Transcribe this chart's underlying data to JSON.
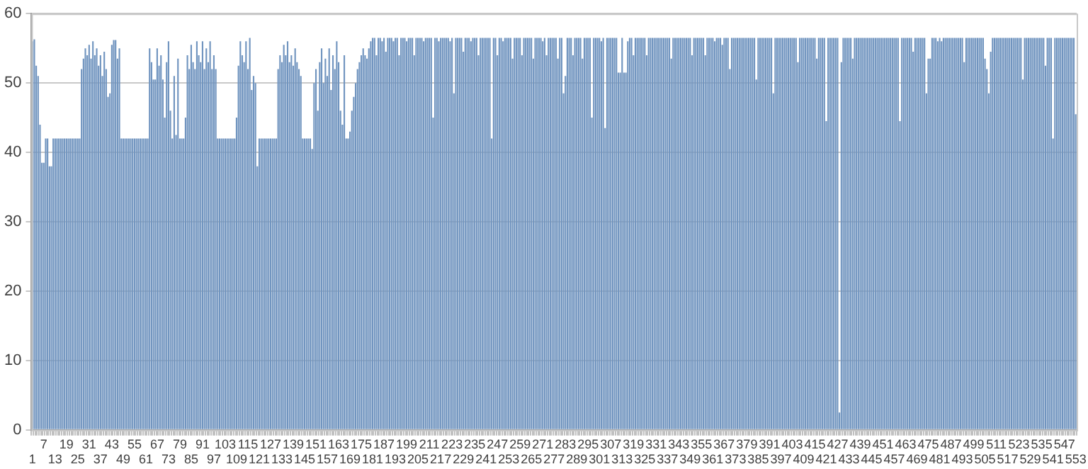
{
  "chart_data": {
    "type": "bar",
    "color": "#7094bf",
    "ylim": [
      0,
      60
    ],
    "yticks": [
      0,
      10,
      20,
      30,
      40,
      50,
      60
    ],
    "grid": "y",
    "categories": [
      "1",
      null,
      null,
      null,
      null,
      null,
      "7",
      null,
      null,
      null,
      null,
      null,
      "13",
      null,
      null,
      null,
      null,
      null,
      "19",
      null,
      null,
      null,
      null,
      null,
      "25",
      null,
      null,
      null,
      null,
      null,
      "31",
      null,
      null,
      null,
      null,
      null,
      "37",
      null,
      null,
      null,
      null,
      null,
      "43",
      null,
      null,
      null,
      null,
      null,
      "49",
      null,
      null,
      null,
      null,
      null,
      "55",
      null,
      null,
      null,
      null,
      null,
      "61",
      null,
      null,
      null,
      null,
      null,
      "67",
      null,
      null,
      null,
      null,
      null,
      "73",
      null,
      null,
      null,
      null,
      null,
      "79",
      null,
      null,
      null,
      null,
      null,
      "85",
      null,
      null,
      null,
      null,
      null,
      "91",
      null,
      null,
      null,
      null,
      null,
      "97",
      null,
      null,
      null,
      null,
      null,
      "103",
      null,
      null,
      null,
      null,
      null,
      "109",
      null,
      null,
      null,
      null,
      null,
      "115",
      null,
      null,
      null,
      null,
      null,
      "121",
      null,
      null,
      null,
      null,
      null,
      "127",
      null,
      null,
      null,
      null,
      null,
      "133",
      null,
      null,
      null,
      null,
      null,
      "139",
      null,
      null,
      null,
      null,
      null,
      "145",
      null,
      null,
      null,
      null,
      null,
      "151",
      null,
      null,
      null,
      null,
      null,
      "157",
      null,
      null,
      null,
      null,
      null,
      "163",
      null,
      null,
      null,
      null,
      null,
      "169",
      null,
      null,
      null,
      null,
      null,
      "175",
      null,
      null,
      null,
      null,
      null,
      "181",
      null,
      null,
      null,
      null,
      null,
      "187",
      null,
      null,
      null,
      null,
      null,
      "193",
      null,
      null,
      null,
      null,
      null,
      "199",
      null,
      null,
      null,
      null,
      null,
      "205",
      null,
      null,
      null,
      null,
      null,
      "211",
      null,
      null,
      null,
      null,
      null,
      "217",
      null,
      null,
      null,
      null,
      null,
      "223",
      null,
      null,
      null,
      null,
      null,
      "229",
      null,
      null,
      null,
      null,
      null,
      "235",
      null,
      null,
      null,
      null,
      null,
      "241",
      null,
      null,
      null,
      null,
      null,
      "247",
      null,
      null,
      null,
      null,
      null,
      "253",
      null,
      null,
      null,
      null,
      null,
      "259",
      null,
      null,
      null,
      null,
      null,
      "265",
      null,
      null,
      null,
      null,
      null,
      "271",
      null,
      null,
      null,
      null,
      null,
      "277",
      null,
      null,
      null,
      null,
      null,
      "283",
      null,
      null,
      null,
      null,
      null,
      "289",
      null,
      null,
      null,
      null,
      null,
      "295",
      null,
      null,
      null,
      null,
      null,
      "301",
      null,
      null,
      null,
      null,
      null,
      "307",
      null,
      null,
      null,
      null,
      null,
      "313",
      null,
      null,
      null,
      null,
      null,
      "319",
      null,
      null,
      null,
      null,
      null,
      "325",
      null,
      null,
      null,
      null,
      null,
      "331",
      null,
      null,
      null,
      null,
      null,
      "337",
      null,
      null,
      null,
      null,
      null,
      "343",
      null,
      null,
      null,
      null,
      null,
      "349",
      null,
      null,
      null,
      null,
      null,
      "355",
      null,
      null,
      null,
      null,
      null,
      "361",
      null,
      null,
      null,
      null,
      null,
      "367",
      null,
      null,
      null,
      null,
      null,
      "373",
      null,
      null,
      null,
      null,
      null,
      "379",
      null,
      null,
      null,
      null,
      null,
      "385",
      null,
      null,
      null,
      null,
      null,
      "391",
      null,
      null,
      null,
      null,
      null,
      "397",
      null,
      null,
      null,
      null,
      null,
      "403",
      null,
      null,
      null,
      null,
      null,
      "409",
      null,
      null,
      null,
      null,
      null,
      "415",
      null,
      null,
      null,
      null,
      null,
      "421",
      null,
      null,
      null,
      null,
      null,
      "427",
      null,
      null,
      null,
      null,
      null,
      "433",
      null,
      null,
      null,
      null,
      null,
      "439",
      null,
      null,
      null,
      null,
      null,
      "445",
      null,
      null,
      null,
      null,
      null,
      "451",
      null,
      null,
      null,
      null,
      null,
      "457",
      null,
      null,
      null,
      null,
      null,
      "463",
      null,
      null,
      null,
      null,
      null,
      "469",
      null,
      null,
      null,
      null,
      null,
      "475",
      null,
      null,
      null,
      null,
      null,
      "481",
      null,
      null,
      null,
      null,
      null,
      "487",
      null,
      null,
      null,
      null,
      null,
      "493",
      null,
      null,
      null,
      null,
      null,
      "499",
      null,
      null,
      null,
      null,
      null,
      "505",
      null,
      null,
      null,
      null,
      null,
      "511",
      null,
      null,
      null,
      null,
      null,
      "517",
      null,
      null,
      null,
      null,
      null,
      "523",
      null,
      null,
      null,
      null,
      null,
      "529",
      null,
      null,
      null,
      null,
      null,
      "535",
      null,
      null,
      null,
      null,
      null,
      "541",
      null,
      null,
      null,
      null,
      null,
      "547",
      null,
      null,
      null,
      null,
      null,
      "553"
    ],
    "values": [
      56,
      56.3,
      52.5,
      51,
      44,
      38.5,
      38.5,
      42,
      42,
      38,
      38,
      42,
      42,
      42,
      42,
      42,
      42,
      42,
      42,
      42,
      42,
      42,
      42,
      42,
      42,
      42,
      52,
      53.5,
      55,
      54,
      55.5,
      53.5,
      56,
      54,
      55,
      52.5,
      54,
      51,
      54.5,
      52,
      48,
      48.5,
      55.5,
      56.2,
      56.2,
      53.5,
      55,
      42,
      42,
      42,
      42,
      42,
      42,
      42,
      42,
      42,
      42,
      42,
      42,
      42,
      42,
      42,
      55,
      53,
      50.5,
      50.5,
      55,
      52.5,
      54,
      50.5,
      45,
      53,
      56,
      46,
      42,
      51,
      42.5,
      53.5,
      42,
      42,
      42,
      45,
      54,
      52,
      55.5,
      53,
      52,
      56,
      54,
      53,
      56,
      52,
      55,
      53,
      56,
      52,
      54,
      52,
      42,
      42,
      42,
      42,
      42,
      42,
      42,
      42,
      42,
      42,
      45,
      52.5,
      56,
      54,
      53,
      56,
      52,
      56.5,
      49,
      51,
      50,
      38,
      42,
      42,
      42,
      42,
      42,
      42,
      42,
      42,
      42,
      42,
      52,
      54,
      53,
      55.5,
      54,
      56,
      53,
      54,
      52.5,
      55,
      53,
      52,
      51,
      42,
      42,
      42,
      42,
      42,
      40.5,
      50,
      52,
      46,
      53,
      55,
      50,
      53.5,
      51,
      55,
      49,
      54,
      52,
      56,
      53,
      46,
      44,
      54,
      42,
      42,
      43,
      46,
      48,
      50,
      52,
      53,
      54,
      55,
      54,
      53.5,
      55,
      56,
      56.5,
      56.5,
      54,
      56.5,
      56.5,
      56,
      56.5,
      54.5,
      56.5,
      56.5,
      56.5,
      56,
      56.5,
      56.5,
      54,
      56.5,
      56.5,
      56.5,
      56,
      56.5,
      56.5,
      56.5,
      54,
      56.5,
      56.5,
      56.5,
      56.5,
      56,
      56.5,
      56.5,
      56.5,
      56.5,
      45,
      56.5,
      56.5,
      56,
      56.5,
      56.5,
      56.5,
      56.5,
      56.5,
      56,
      56.5,
      48.5,
      56.5,
      56.5,
      56.5,
      56.5,
      54.5,
      56.5,
      56.5,
      56.5,
      56,
      56.5,
      56.5,
      56.5,
      54,
      56.5,
      56.5,
      56.5,
      56.5,
      56.5,
      56.5,
      42,
      56.5,
      56.5,
      54,
      56.5,
      56.5,
      56,
      56.5,
      56.5,
      56.5,
      56.5,
      53.5,
      56.5,
      56.5,
      56.5,
      56.5,
      54,
      56.5,
      56.5,
      56.5,
      56.5,
      56.5,
      53.5,
      56.5,
      56.5,
      56.5,
      56.5,
      56,
      56.5,
      54,
      56.5,
      56.5,
      56.5,
      56.5,
      56.5,
      53.5,
      56.5,
      56.5,
      48.5,
      51,
      56.5,
      56.5,
      56.5,
      54,
      56.5,
      56.5,
      56.5,
      56.5,
      53.5,
      56.5,
      56.5,
      56.5,
      56.5,
      45,
      56.5,
      56.5,
      56.5,
      56.5,
      56,
      56.5,
      43.5,
      56.5,
      56.5,
      56.5,
      56.5,
      56.5,
      56.5,
      51.5,
      51.5,
      56.5,
      51.5,
      51.5,
      56,
      56.5,
      56.5,
      54,
      56.5,
      56.5,
      56.5,
      56.5,
      56.5,
      56.5,
      54,
      56.5,
      56.5,
      56.5,
      56.5,
      56.5,
      56.5,
      56.5,
      56.5,
      56.5,
      56.5,
      56.5,
      56.5,
      53.5,
      56.5,
      56.5,
      56.5,
      56.5,
      56.5,
      56.5,
      56.5,
      56.5,
      56.5,
      56.5,
      54,
      56.5,
      56.5,
      56.5,
      56.5,
      56.5,
      56.5,
      54,
      56.5,
      56.5,
      56.5,
      56.5,
      56,
      56.5,
      56.5,
      56.5,
      55.5,
      56.5,
      56.5,
      56.5,
      52,
      56.5,
      56.5,
      56.5,
      56.5,
      56.5,
      56.5,
      56.5,
      56.5,
      56.5,
      56.5,
      56.5,
      56.5,
      56.5,
      50.5,
      56.5,
      56.5,
      56.5,
      56.5,
      56.5,
      56.5,
      56.5,
      56.5,
      48.5,
      56.5,
      56.5,
      56.5,
      56.5,
      56.5,
      56.5,
      56.5,
      56.5,
      56.5,
      56.5,
      56.5,
      56.5,
      53,
      56.5,
      56.5,
      56.5,
      56.5,
      56.5,
      56.5,
      56.5,
      56.5,
      56.5,
      53.5,
      56.5,
      56.5,
      56.5,
      56.5,
      44.5,
      56.5,
      56.5,
      56.5,
      56.5,
      56.5,
      56.5,
      2.5,
      53,
      56.5,
      56.5,
      56.5,
      56.5,
      56.5,
      53.5,
      56.5,
      56.5,
      56.5,
      56.5,
      56.5,
      56.5,
      56.5,
      56.5,
      56.5,
      56.5,
      56.5,
      56.5,
      56.5,
      56.5,
      56.5,
      56.5,
      56.5,
      56.5,
      56.5,
      56.5,
      56.5,
      56.5,
      56.5,
      56.5,
      44.5,
      56.5,
      56.5,
      56.5,
      56.5,
      56.5,
      56.5,
      54.5,
      56.5,
      56.5,
      56.5,
      56.5,
      56.5,
      56.5,
      48.5,
      53.5,
      53.5,
      56.5,
      56.5,
      56.5,
      56,
      56.5,
      56,
      56.5,
      56.5,
      56.5,
      56.5,
      56.5,
      56.5,
      56.5,
      56.5,
      56.5,
      56.5,
      56.5,
      53,
      56.5,
      56.5,
      56.5,
      56.5,
      56.5,
      56.5,
      56.5,
      56.5,
      56.5,
      56.5,
      53.5,
      52,
      48.5,
      54.5,
      56.5,
      56.5,
      56.5,
      56.5,
      56.5,
      56.5,
      56.5,
      56.5,
      56.5,
      56.5,
      56.5,
      56.5,
      56.5,
      56.5,
      56.5,
      56.5,
      50.5,
      56.5,
      56.5,
      56.5,
      56.5,
      56.5,
      56.5,
      56.5,
      56.5,
      56.5,
      56.5,
      56.5,
      52.5,
      56.5,
      56.5,
      56.5,
      42,
      56.5,
      56.5,
      56.5,
      56.5,
      56.5,
      56.5,
      56.5,
      56.5,
      56.5,
      56.5,
      56.5,
      45.5
    ]
  }
}
